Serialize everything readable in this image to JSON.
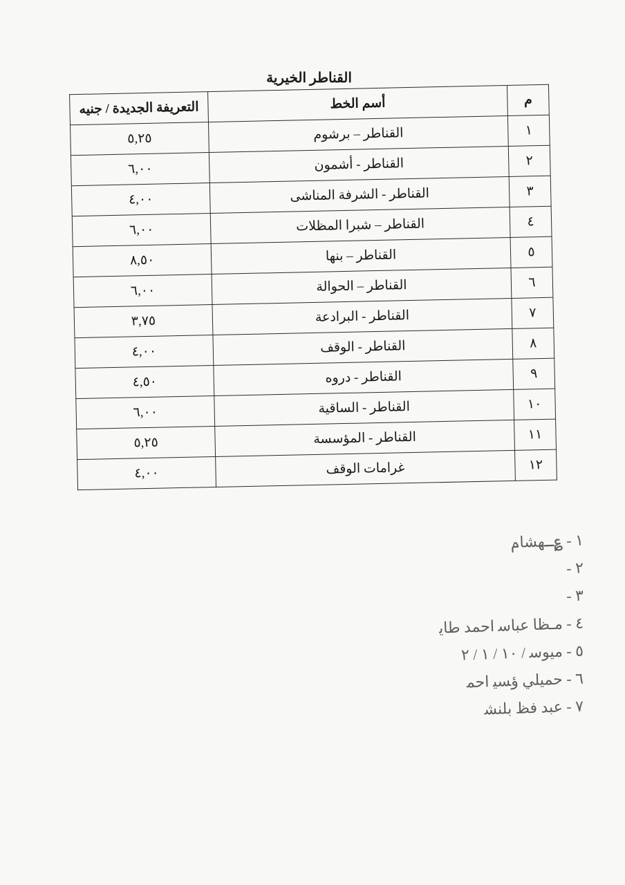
{
  "title": "القناطر الخيرية",
  "table": {
    "headers": {
      "num": "م",
      "route": "أسم الخط",
      "tariff": "التعريفة الجديدة / جنيه"
    },
    "rows": [
      {
        "num": "١",
        "route": "القناطر – برشوم",
        "tariff": "٥,٢٥"
      },
      {
        "num": "٢",
        "route": "القناطر - أشمون",
        "tariff": "٦,٠٠"
      },
      {
        "num": "٣",
        "route": "القناطر - الشرفة المناشى",
        "tariff": "٤,٠٠"
      },
      {
        "num": "٤",
        "route": "القناطر – شبرا المظلات",
        "tariff": "٦,٠٠"
      },
      {
        "num": "٥",
        "route": "القناطر – بنها",
        "tariff": "٨,٥٠"
      },
      {
        "num": "٦",
        "route": "القناطر – الحوالة",
        "tariff": "٦,٠٠"
      },
      {
        "num": "٧",
        "route": "القناطر - البرادعة",
        "tariff": "٣,٧٥"
      },
      {
        "num": "٨",
        "route": "القناطر - الوقف",
        "tariff": "٤,٠٠"
      },
      {
        "num": "٩",
        "route": "القناطر - دروه",
        "tariff": "٤,٥٠"
      },
      {
        "num": "١٠",
        "route": "القناطر - الساقية",
        "tariff": "٦,٠٠"
      },
      {
        "num": "١١",
        "route": "القناطر - المؤسسة",
        "tariff": "٥,٢٥"
      },
      {
        "num": "١٢",
        "route": "غرامات الوقف",
        "tariff": "٤,٠٠"
      }
    ]
  },
  "handwriting": [
    "١ - ؏ـﻬﺸﺎم",
    "٢ -",
    "٣ -",
    "٤ - مـﻈﺎ ﻋﺒﺎﺳ احمد ﻃﺎﻳ",
    "٥ - ﻣﻴﻮﺳ / ١٠ / ١ / ٢",
    "٦ - ﺣﻤﻴﻠﻲ ؤﺴﻴ اﺣﻤ",
    "٧ - ﻋﺒﺪ ﻓﻆ ﺑﻠﻨﺸ"
  ]
}
